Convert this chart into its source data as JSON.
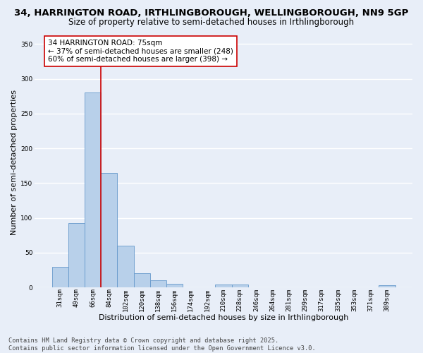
{
  "title_line1": "34, HARRINGTON ROAD, IRTHLINGBOROUGH, WELLINGBOROUGH, NN9 5GP",
  "title_line2": "Size of property relative to semi-detached houses in Irthlingborough",
  "xlabel": "Distribution of semi-detached houses by size in Irthlingborough",
  "ylabel": "Number of semi-detached properties",
  "bar_labels": [
    "31sqm",
    "49sqm",
    "66sqm",
    "84sqm",
    "102sqm",
    "120sqm",
    "138sqm",
    "156sqm",
    "174sqm",
    "192sqm",
    "210sqm",
    "228sqm",
    "246sqm",
    "264sqm",
    "281sqm",
    "299sqm",
    "317sqm",
    "335sqm",
    "353sqm",
    "371sqm",
    "389sqm"
  ],
  "bar_values": [
    30,
    93,
    280,
    165,
    60,
    20,
    10,
    5,
    0,
    0,
    4,
    4,
    0,
    0,
    0,
    0,
    0,
    0,
    0,
    0,
    3
  ],
  "bar_color": "#b8d0ea",
  "bar_edge_color": "#6699cc",
  "background_color": "#e8eef8",
  "grid_color": "#ffffff",
  "annotation_text": "34 HARRINGTON ROAD: 75sqm\n← 37% of semi-detached houses are smaller (248)\n60% of semi-detached houses are larger (398) →",
  "vline_x": 2.5,
  "vline_color": "#cc0000",
  "annotation_box_color": "#ffffff",
  "annotation_box_edge": "#cc0000",
  "ylim": [
    0,
    360
  ],
  "yticks": [
    0,
    50,
    100,
    150,
    200,
    250,
    300,
    350
  ],
  "footer_text": "Contains HM Land Registry data © Crown copyright and database right 2025.\nContains public sector information licensed under the Open Government Licence v3.0.",
  "title_fontsize": 9.5,
  "subtitle_fontsize": 8.5,
  "axis_label_fontsize": 8,
  "tick_fontsize": 6.5,
  "annotation_fontsize": 7.5,
  "footer_fontsize": 6.2
}
